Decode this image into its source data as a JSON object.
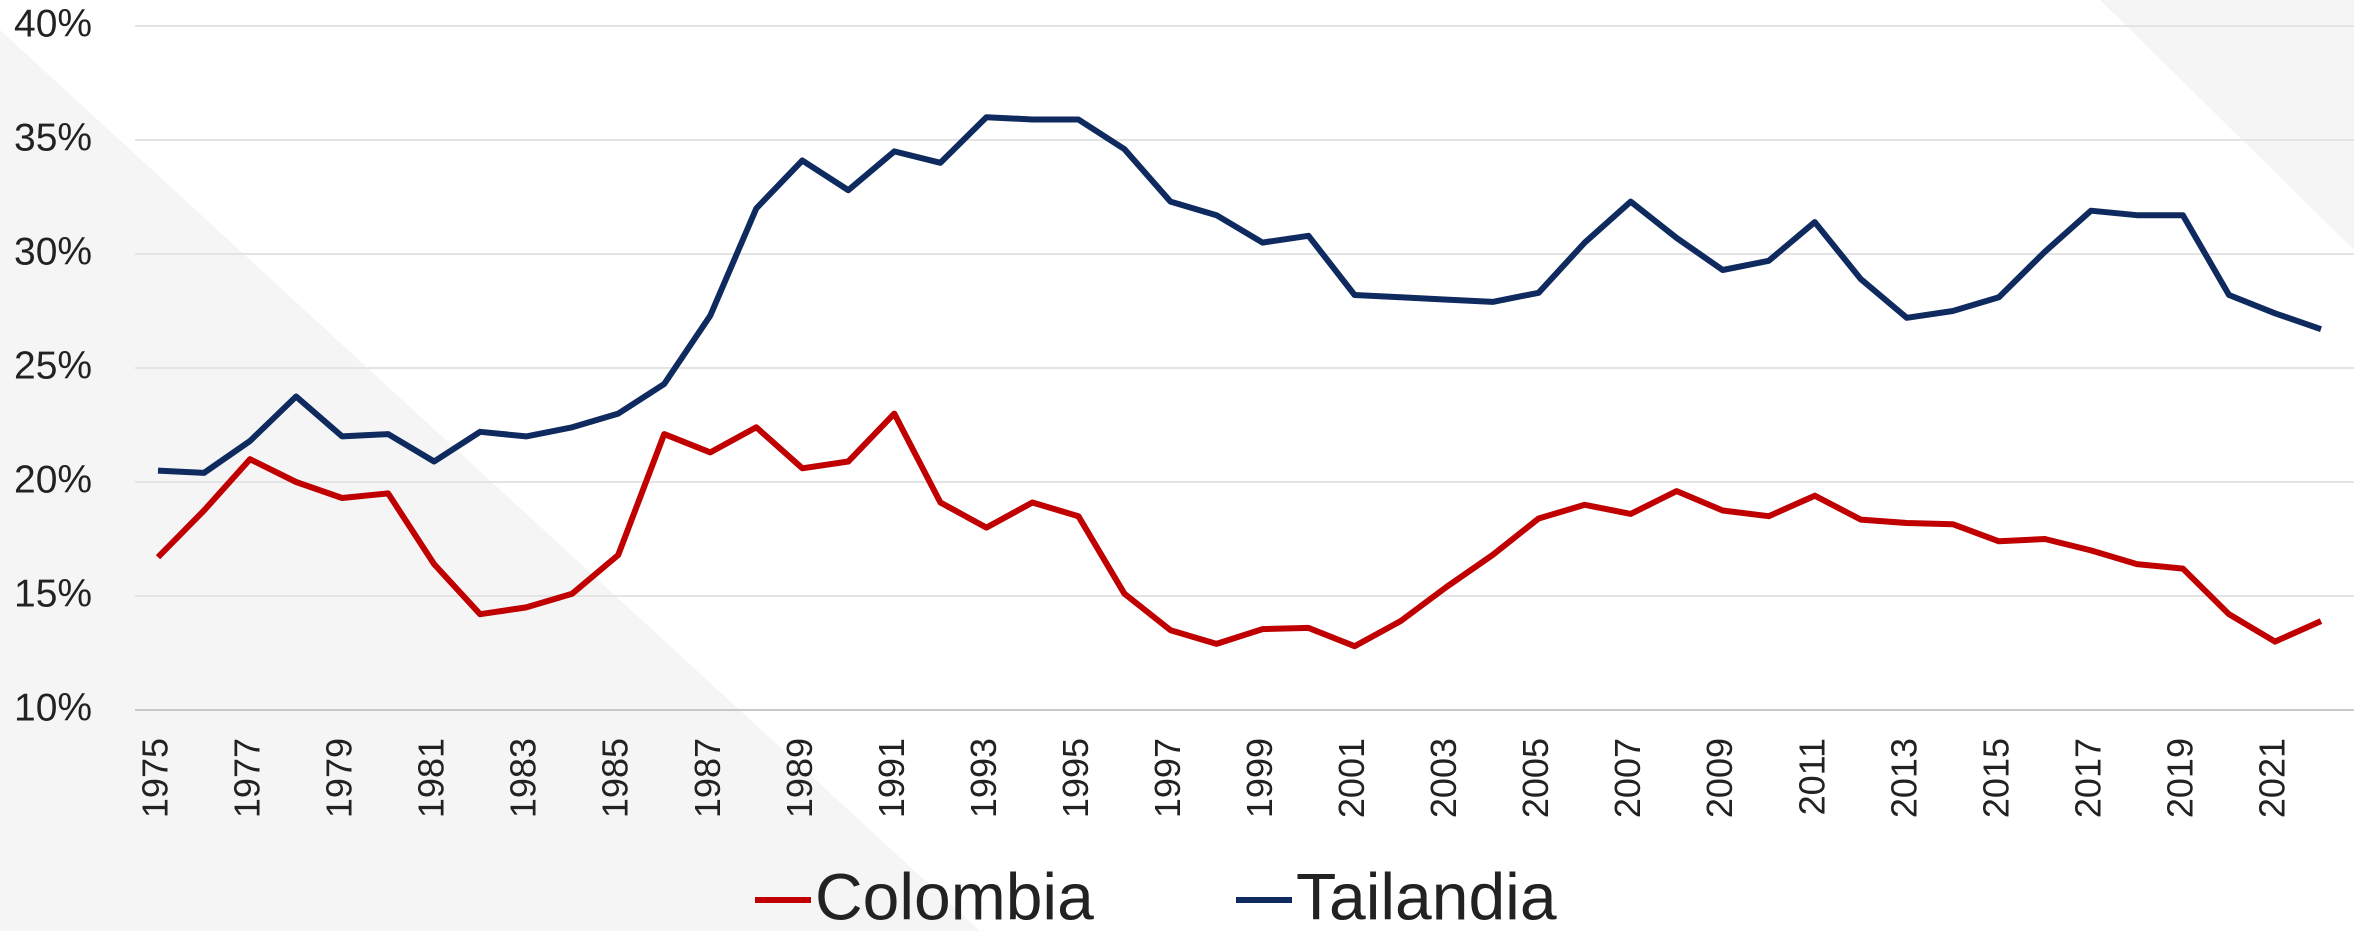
{
  "chart_data": {
    "type": "line",
    "categories": [
      "1975",
      null,
      "1977",
      null,
      "1979",
      null,
      "1981",
      null,
      "1983",
      null,
      "1985",
      null,
      "1987",
      null,
      "1989",
      null,
      "1991",
      null,
      "1993",
      null,
      "1995",
      null,
      "1997",
      null,
      "1999",
      null,
      "2001",
      null,
      "2003",
      null,
      "2005",
      null,
      "2007",
      null,
      "2009",
      null,
      "2011",
      null,
      "2013",
      null,
      "2015",
      null,
      "2017",
      null,
      "2019",
      null,
      "2021",
      null
    ],
    "series": [
      {
        "name": "Colombia",
        "color": "#c00000",
        "values": [
          16.7,
          18.75,
          21.0,
          20.0,
          19.3,
          19.5,
          16.4,
          14.2,
          14.5,
          15.1,
          16.8,
          22.1,
          21.3,
          22.4,
          20.6,
          20.9,
          23.0,
          19.1,
          18.0,
          19.1,
          18.5,
          15.1,
          13.5,
          12.9,
          13.55,
          13.6,
          12.8,
          13.9,
          15.4,
          16.8,
          18.4,
          19.0,
          18.6,
          19.6,
          18.75,
          18.5,
          19.4,
          18.35,
          18.2,
          18.15,
          17.4,
          17.5,
          17.0,
          16.4,
          16.2,
          14.2,
          13.0,
          13.9
        ]
      },
      {
        "name": "Tailandia",
        "color": "#0e2a5e",
        "values": [
          20.5,
          20.4,
          21.8,
          23.75,
          22.0,
          22.1,
          20.9,
          22.2,
          22.0,
          22.4,
          23.0,
          24.3,
          27.3,
          32.0,
          34.1,
          32.8,
          34.5,
          34.0,
          36.0,
          35.9,
          35.9,
          34.6,
          32.3,
          31.7,
          30.5,
          30.8,
          28.2,
          28.1,
          28.0,
          27.9,
          28.3,
          30.5,
          32.3,
          30.7,
          29.3,
          29.7,
          31.4,
          28.9,
          27.2,
          27.5,
          28.1,
          30.1,
          31.9,
          31.7,
          31.7,
          28.2,
          27.4,
          26.7
        ]
      }
    ],
    "ylim": [
      10,
      40
    ],
    "yticks": [
      {
        "value": 10,
        "label": "10%"
      },
      {
        "value": 15,
        "label": "15%"
      },
      {
        "value": 20,
        "label": "20%"
      },
      {
        "value": 25,
        "label": "25%"
      },
      {
        "value": 30,
        "label": "30%"
      },
      {
        "value": 35,
        "label": "35%"
      },
      {
        "value": 40,
        "label": "40%"
      }
    ],
    "grid": true,
    "legend": "bottom"
  }
}
